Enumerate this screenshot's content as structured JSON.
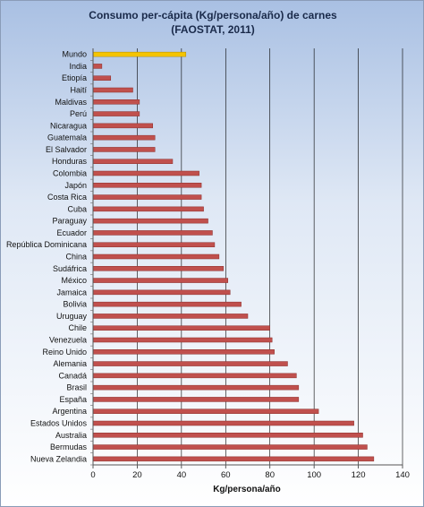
{
  "chart_data": {
    "type": "bar",
    "orientation": "horizontal",
    "title_line1": "Consumo  per-cápita (Kg/persona/año) de carnes",
    "title_line2": "(FAOSTAT, 2011)",
    "xlabel": "Kg/persona/año",
    "ylabel": "",
    "xlim": [
      0,
      140
    ],
    "xticks": [
      0,
      20,
      40,
      60,
      80,
      100,
      120,
      140
    ],
    "grid": true,
    "legend": "none",
    "colors": {
      "bar": "#c0504d",
      "highlight": "#f5c400",
      "grid": "#000000"
    },
    "categories": [
      "Mundo",
      "India",
      "Etiopía",
      "Haití",
      "Maldivas",
      "Perú",
      "Nicaragua",
      "Guatemala",
      "El Salvador",
      "Honduras",
      "Colombia",
      "Japón",
      "Costa Rica",
      "Cuba",
      "Paraguay",
      "Ecuador",
      "República Dominicana",
      "China",
      "Sudáfrica",
      "México",
      "Jamaica",
      "Bolivia",
      "Uruguay",
      "Chile",
      "Venezuela",
      "Reino Unido",
      "Alemania",
      "Canadá",
      "Brasil",
      "España",
      "Argentina",
      "Estados Unidos",
      "Australia",
      "Bermudas",
      "Nueva Zelandia"
    ],
    "values": [
      42,
      4,
      8,
      18,
      21,
      21,
      27,
      28,
      28,
      36,
      48,
      49,
      49,
      50,
      52,
      54,
      55,
      57,
      59,
      61,
      62,
      67,
      70,
      80,
      81,
      82,
      88,
      92,
      93,
      93,
      102,
      118,
      122,
      124,
      127
    ],
    "highlight_category": "Mundo"
  }
}
